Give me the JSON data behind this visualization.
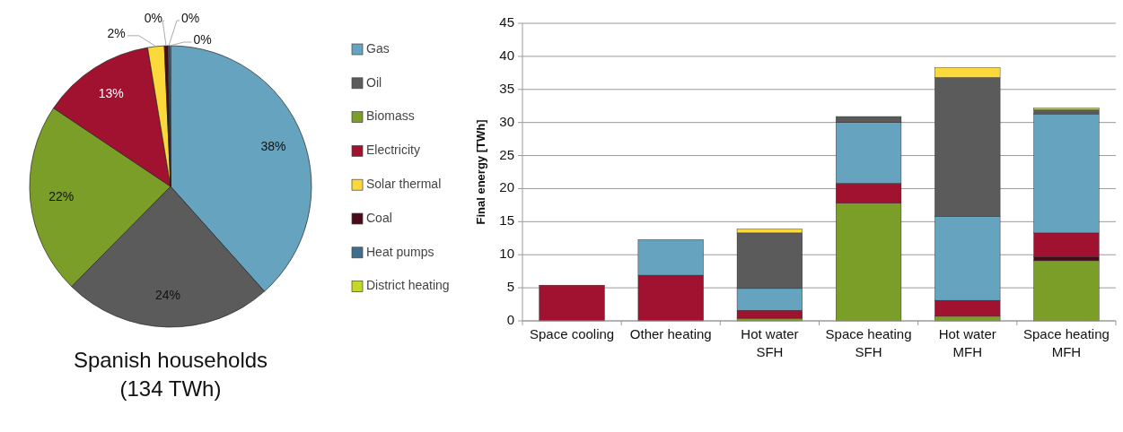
{
  "chart_data": [
    {
      "type": "pie",
      "title": "Spanish households",
      "subtitle": "(134 TWh)",
      "legend": "right",
      "categories": [
        "Gas",
        "Oil",
        "Biomass",
        "Electricity",
        "Solar thermal",
        "Coal",
        "Heat pumps",
        "District heating"
      ],
      "values": [
        38.4,
        24,
        22,
        13,
        1.9,
        0.4,
        0.2,
        0.1
      ],
      "value_labels": [
        "38%",
        "24%",
        "22%",
        "13%",
        "2%",
        "0%",
        "0%",
        "0%"
      ],
      "colors": [
        "#65a3bf",
        "#5b5b5b",
        "#7a9e28",
        "#a01230",
        "#fcd93a",
        "#4a0a1a",
        "#3f6f8a",
        "#c3d825"
      ]
    },
    {
      "type": "bar",
      "stacked": true,
      "ylabel": "Final energy [TWh]",
      "grid": "y",
      "categories": [
        "Space cooling",
        "Other heating",
        "Hot water SFH",
        "Space heating SFH",
        "Hot water MFH",
        "Space heating MFH"
      ],
      "ylim": [
        0,
        45
      ],
      "yticks": [
        0,
        5,
        10,
        15,
        20,
        25,
        30,
        35,
        40,
        45
      ],
      "series": [
        {
          "color": "#7a9e28",
          "values": [
            null,
            null,
            0.4,
            17.8,
            0.7,
            9.1
          ]
        },
        {
          "color": "#4a0a1a",
          "values": [
            null,
            null,
            null,
            null,
            null,
            0.6
          ]
        },
        {
          "color": "#a01230",
          "values": [
            5.4,
            6.9,
            1.2,
            3.0,
            2.4,
            3.6
          ]
        },
        {
          "color": "#65a3bf",
          "values": [
            null,
            5.4,
            3.3,
            9.2,
            12.7,
            18.0
          ]
        },
        {
          "color": "#5b5b5b",
          "values": [
            null,
            null,
            8.4,
            0.9,
            21.0,
            0.6
          ]
        },
        {
          "color": "#fcd93a",
          "values": [
            null,
            null,
            0.6,
            null,
            1.5,
            null
          ]
        },
        {
          "color": "#c3d825",
          "values": [
            null,
            null,
            null,
            null,
            null,
            0.3
          ]
        }
      ]
    }
  ]
}
